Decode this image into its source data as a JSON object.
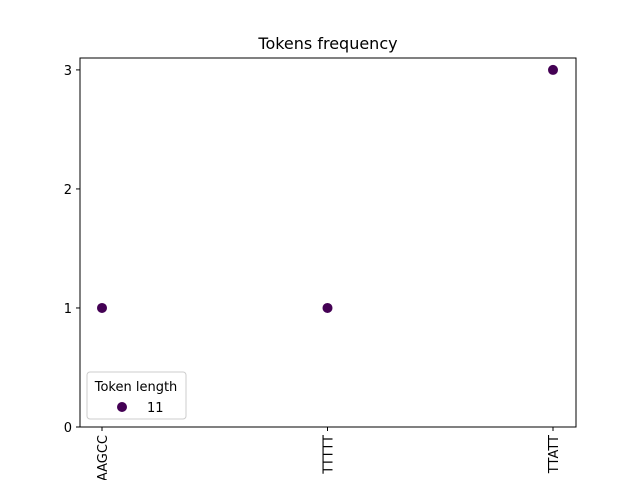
{
  "chart_data": {
    "type": "scatter",
    "title": "Tokens frequency",
    "xlabel": "",
    "ylabel": "",
    "categories": [
      "AAGCC",
      "TTTTT",
      "TTATT"
    ],
    "series": [
      {
        "name": "11",
        "x": [
          "AAGCC",
          "TTTTT",
          "TTATT"
        ],
        "y": [
          1,
          1,
          3
        ]
      }
    ],
    "yticks": [
      0,
      1,
      2,
      3
    ],
    "ylim": [
      0,
      3.1
    ],
    "grid": false,
    "legend": {
      "title": "Token length",
      "placement": "lower-left"
    },
    "colors": {
      "marker": "#440154",
      "axes": "#000000",
      "legend_border": "#cccccc"
    }
  }
}
